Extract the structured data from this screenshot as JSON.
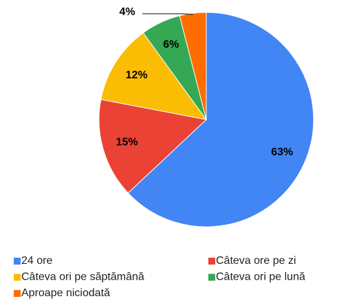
{
  "chart_data": {
    "type": "pie",
    "categories": [
      "24 ore",
      "Câteva ore pe zi",
      "Câteva ori pe săptămână",
      "Câteva ori pe lună",
      "Aproape niciodată"
    ],
    "values": [
      63,
      15,
      12,
      6,
      4
    ],
    "value_labels": [
      "63%",
      "15%",
      "12%",
      "6%",
      "4%"
    ],
    "colors": [
      "#4285f4",
      "#ea4335",
      "#fbbc04",
      "#34a853",
      "#ff6d01"
    ],
    "legend": "bottom"
  }
}
